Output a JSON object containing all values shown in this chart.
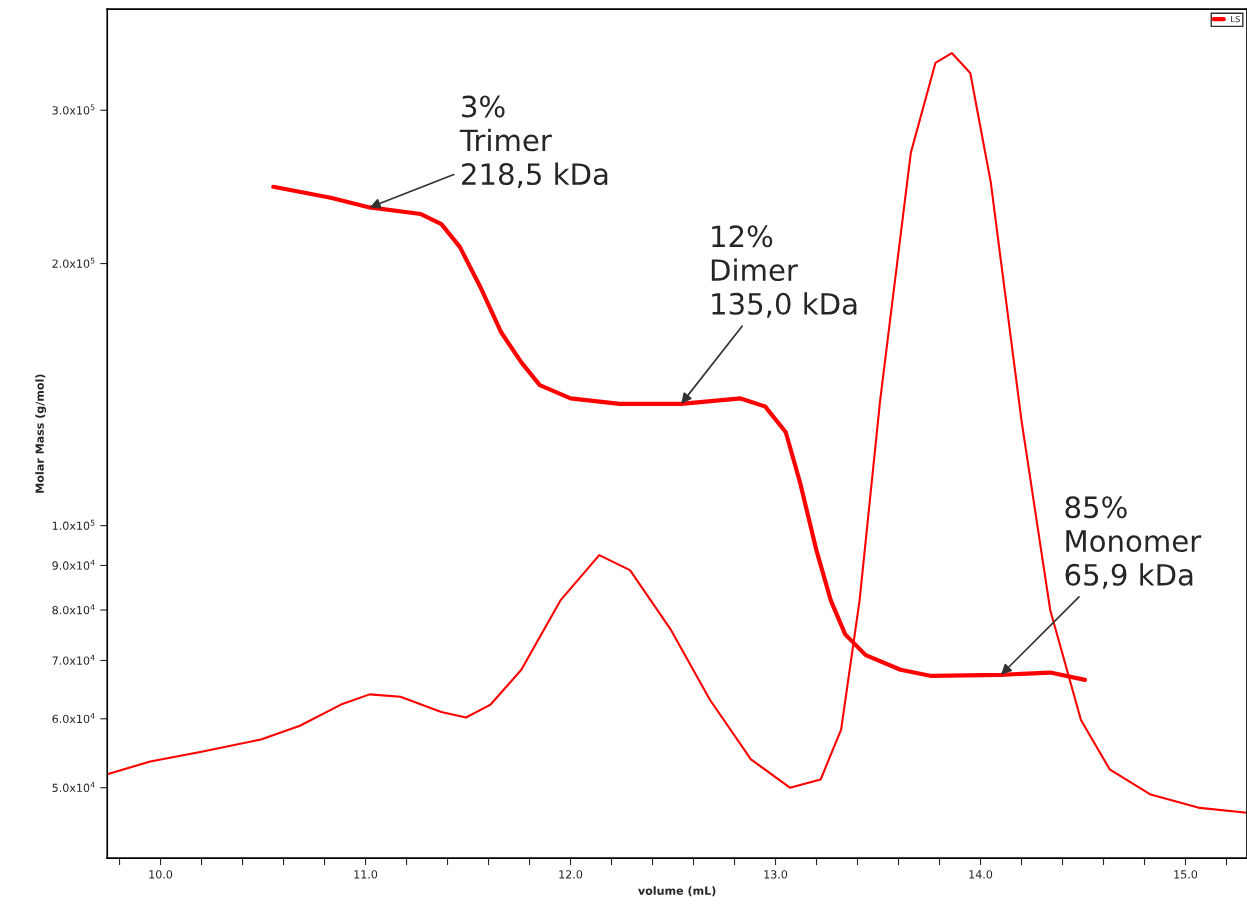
{
  "chart_data": {
    "type": "line",
    "xlabel": "volume (mL)",
    "ylabel": "Molar Mass (g/mol)",
    "log": "y",
    "grid": false,
    "legend": "top right",
    "xlim": [
      9.74,
      15.3
    ],
    "ylim": [
      41500,
      392000
    ],
    "xticks": [
      {
        "value": 9.8,
        "label": null
      },
      {
        "value": 10.0,
        "label": "10.0"
      },
      {
        "value": 10.2,
        "label": null
      },
      {
        "value": 10.4,
        "label": null
      },
      {
        "value": 10.6,
        "label": null
      },
      {
        "value": 10.8,
        "label": null
      },
      {
        "value": 11.0,
        "label": "11.0"
      },
      {
        "value": 11.2,
        "label": null
      },
      {
        "value": 11.4,
        "label": null
      },
      {
        "value": 11.6,
        "label": null
      },
      {
        "value": 11.8,
        "label": null
      },
      {
        "value": 12.0,
        "label": "12.0"
      },
      {
        "value": 12.2,
        "label": null
      },
      {
        "value": 12.4,
        "label": null
      },
      {
        "value": 12.6,
        "label": null
      },
      {
        "value": 12.8,
        "label": null
      },
      {
        "value": 13.0,
        "label": "13.0"
      },
      {
        "value": 13.2,
        "label": null
      },
      {
        "value": 13.4,
        "label": null
      },
      {
        "value": 13.6,
        "label": null
      },
      {
        "value": 13.8,
        "label": null
      },
      {
        "value": 14.0,
        "label": "14.0"
      },
      {
        "value": 14.2,
        "label": null
      },
      {
        "value": 14.4,
        "label": null
      },
      {
        "value": 14.6,
        "label": null
      },
      {
        "value": 14.8,
        "label": null
      },
      {
        "value": 15.0,
        "label": "15.0"
      },
      {
        "value": 15.2,
        "label": null
      }
    ],
    "yticks": [
      {
        "value": 50000,
        "label": "5.0x10$^{4}$"
      },
      {
        "value": 60000,
        "label": "6.0x10$^{4}$"
      },
      {
        "value": 70000,
        "label": "7.0x10$^{4}$"
      },
      {
        "value": 80000,
        "label": "8.0x10$^{4}$"
      },
      {
        "value": 90000,
        "label": "9.0x10$^{4}$"
      },
      {
        "value": 100000,
        "label": "1.0x10$^{5}$"
      },
      {
        "value": 200000,
        "label": "2.0x10$^{5}$"
      },
      {
        "value": 300000,
        "label": "3.0x10$^{5}$"
      }
    ],
    "series": [
      {
        "color": "#ff0000",
        "x": [
          10.55,
          10.83,
          11.02,
          11.27,
          11.37,
          11.46,
          11.56,
          11.66,
          11.76,
          11.85,
          12.0,
          12.24,
          12.54,
          12.83,
          12.95,
          13.05,
          13.12,
          13.2,
          13.27,
          13.34,
          13.44,
          13.61,
          13.76,
          14.1,
          14.34,
          14.51
        ],
        "values": [
          245000,
          238000,
          232000,
          228000,
          222000,
          209000,
          188000,
          167000,
          154000,
          145000,
          140000,
          138000,
          138000,
          140000,
          137000,
          128000,
          112000,
          93600,
          82000,
          75000,
          71000,
          68300,
          67200,
          67400,
          67800,
          66500
        ]
      },
      {
        "name": "LS",
        "color": "#ff0000",
        "x": [
          9.74,
          9.95,
          10.2,
          10.49,
          10.68,
          10.88,
          11.02,
          11.17,
          11.37,
          11.49,
          11.61,
          11.76,
          11.95,
          12.14,
          12.29,
          12.49,
          12.68,
          12.88,
          13.07,
          13.22,
          13.32,
          13.41,
          13.51,
          13.66,
          13.78,
          13.86,
          13.95,
          14.05,
          14.2,
          14.34,
          14.49,
          14.63,
          14.83,
          15.07,
          15.3
        ],
        "values": [
          51800,
          53600,
          55000,
          56800,
          58900,
          62300,
          64000,
          63600,
          61100,
          60200,
          62300,
          68300,
          82000,
          92500,
          88900,
          75900,
          63100,
          53900,
          50000,
          51100,
          58300,
          82000,
          139000,
          268000,
          340000,
          349000,
          331000,
          248000,
          132000,
          80000,
          59800,
          52500,
          49100,
          47400,
          46800
        ]
      }
    ],
    "annotations": [
      {
        "text": "3%\nTrimer\n218,5 kDa",
        "x": 11.02,
        "y": 232000
      },
      {
        "text": "12%\nDimer\n135,0 kDa",
        "x": 12.54,
        "y": 138000
      },
      {
        "text": "85%\nMonomer\n65,9 kDa",
        "x": 14.1,
        "y": 67400
      }
    ]
  }
}
